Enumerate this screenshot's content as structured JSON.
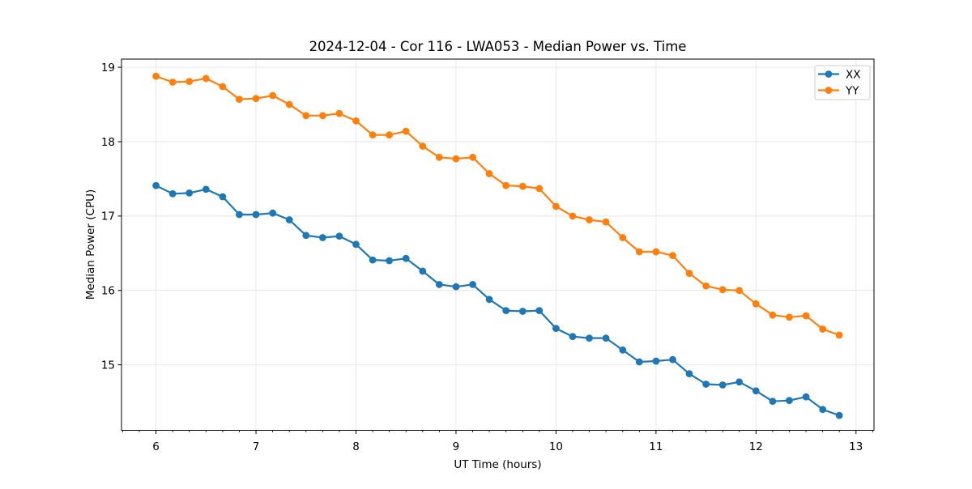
{
  "figure": {
    "background": "#ffffff"
  },
  "chart_data": {
    "type": "line",
    "title": "2024-12-04 - Cor 116 - LWA053 - Median Power vs. Time",
    "xlabel": "UT Time (hours)",
    "ylabel": "Median Power (CPU)",
    "xlim": [
      5.655,
      13.18
    ],
    "ylim": [
      14.12,
      19.11
    ],
    "x_major_ticks": [
      6,
      7,
      8,
      9,
      10,
      11,
      12,
      13
    ],
    "y_major_ticks": [
      15,
      16,
      17,
      18,
      19
    ],
    "x_minor_per_major": 6,
    "grid": true,
    "grid_color": "#e4e4e4",
    "axis_color": "#000000",
    "legend_position": "upper right",
    "x": [
      6.0,
      6.167,
      6.333,
      6.5,
      6.667,
      6.833,
      7.0,
      7.167,
      7.333,
      7.5,
      7.667,
      7.833,
      8.0,
      8.167,
      8.333,
      8.5,
      8.667,
      8.833,
      9.0,
      9.167,
      9.333,
      9.5,
      9.667,
      9.833,
      10.0,
      10.167,
      10.333,
      10.5,
      10.667,
      10.833,
      11.0,
      11.167,
      11.333,
      11.5,
      11.667,
      11.833,
      12.0,
      12.167,
      12.333,
      12.5,
      12.667,
      12.833
    ],
    "series": [
      {
        "name": "XX",
        "color": "#1f77b4",
        "marker": "circle",
        "values": [
          17.41,
          17.3,
          17.31,
          17.36,
          17.26,
          17.02,
          17.02,
          17.04,
          16.95,
          16.74,
          16.71,
          16.73,
          16.62,
          16.41,
          16.4,
          16.43,
          16.26,
          16.08,
          16.05,
          16.08,
          15.88,
          15.73,
          15.72,
          15.73,
          15.49,
          15.38,
          15.36,
          15.36,
          15.2,
          15.04,
          15.05,
          15.07,
          14.88,
          14.74,
          14.73,
          14.77,
          14.65,
          14.51,
          14.52,
          14.57,
          14.4,
          14.32
        ]
      },
      {
        "name": "YY",
        "color": "#ff7f0e",
        "marker": "circle",
        "values": [
          18.88,
          18.8,
          18.81,
          18.85,
          18.74,
          18.57,
          18.58,
          18.62,
          18.5,
          18.35,
          18.35,
          18.38,
          18.28,
          18.09,
          18.09,
          18.14,
          17.94,
          17.79,
          17.77,
          17.79,
          17.57,
          17.41,
          17.4,
          17.37,
          17.13,
          17.0,
          16.95,
          16.92,
          16.71,
          16.52,
          16.52,
          16.47,
          16.23,
          16.06,
          16.01,
          16.0,
          15.82,
          15.67,
          15.64,
          15.66,
          15.48,
          15.4
        ]
      }
    ]
  }
}
